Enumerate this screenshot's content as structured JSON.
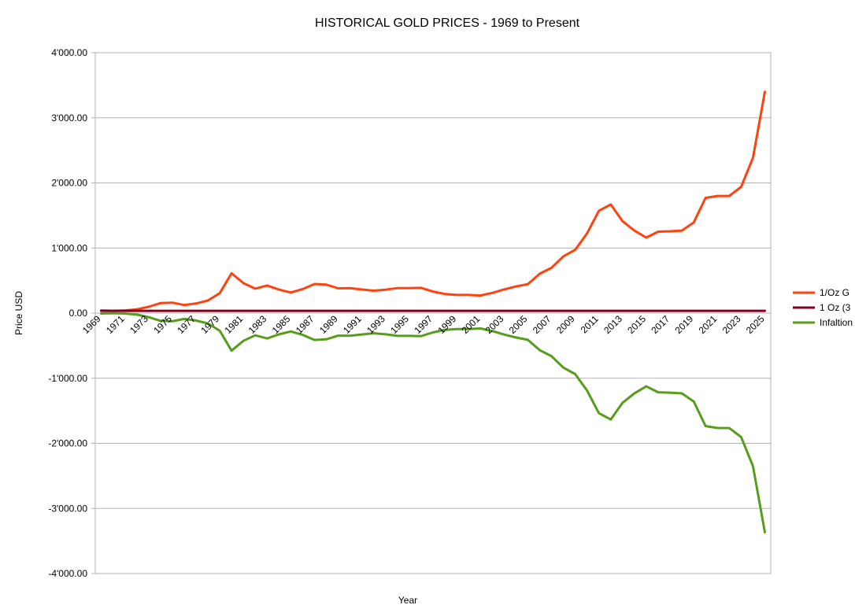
{
  "chart_data": {
    "type": "line",
    "title": "HISTORICAL GOLD PRICES - 1969 to Present",
    "xlabel": "Year",
    "ylabel": "Price USD",
    "ylim": [
      -4000,
      4000
    ],
    "grid": true,
    "legend_position": "right",
    "y_ticks": [
      {
        "value": 4000,
        "label": "4'000.00"
      },
      {
        "value": 3000,
        "label": "3'000.00"
      },
      {
        "value": 2000,
        "label": "2'000.00"
      },
      {
        "value": 1000,
        "label": "1'000.00"
      },
      {
        "value": 0,
        "label": "0.00"
      },
      {
        "value": -1000,
        "label": "-1'000.00"
      },
      {
        "value": -2000,
        "label": "-2'000.00"
      },
      {
        "value": -3000,
        "label": "-3'000.00"
      },
      {
        "value": -4000,
        "label": "-4'000.00"
      }
    ],
    "x_tick_labels": [
      "1969",
      "1971",
      "1973",
      "1975",
      "1977",
      "1979",
      "1981",
      "1983",
      "1985",
      "1987",
      "1989",
      "1991",
      "1993",
      "1995",
      "1997",
      "1999",
      "2001",
      "2003",
      "2005",
      "2007",
      "2009",
      "2011",
      "2013",
      "2015",
      "2017",
      "2019",
      "2021",
      "2023",
      "2025"
    ],
    "x": [
      1969,
      1970,
      1971,
      1972,
      1973,
      1974,
      1975,
      1976,
      1977,
      1978,
      1979,
      1980,
      1981,
      1982,
      1983,
      1984,
      1985,
      1986,
      1987,
      1988,
      1989,
      1990,
      1991,
      1992,
      1993,
      1994,
      1995,
      1996,
      1997,
      1998,
      1999,
      2000,
      2001,
      2002,
      2003,
      2004,
      2005,
      2006,
      2007,
      2008,
      2009,
      2010,
      2011,
      2012,
      2013,
      2014,
      2015,
      2016,
      2017,
      2018,
      2019,
      2020,
      2021,
      2022,
      2023,
      2024,
      2025
    ],
    "series": [
      {
        "name": "1/Oz G",
        "color": "#ff420e",
        "values": [
          41,
          36,
          41,
          58,
          97,
          154,
          161,
          125,
          148,
          193,
          306,
          612,
          460,
          376,
          424,
          361,
          317,
          368,
          447,
          437,
          381,
          383,
          362,
          344,
          360,
          384,
          384,
          388,
          331,
          294,
          279,
          279,
          271,
          310,
          364,
          410,
          445,
          604,
          696,
          872,
          972,
          1225,
          1572,
          1669,
          1411,
          1266,
          1160,
          1251,
          1257,
          1268,
          1393,
          1770,
          1799,
          1800,
          1940,
          2386,
          3400
        ]
      },
      {
        "name": "1 Oz (3",
        "color": "#7e0021",
        "values": [
          35,
          35,
          35,
          35,
          35,
          35,
          35,
          35,
          35,
          35,
          35,
          35,
          35,
          35,
          35,
          35,
          35,
          35,
          35,
          35,
          35,
          35,
          35,
          35,
          35,
          35,
          35,
          35,
          35,
          35,
          35,
          35,
          35,
          35,
          35,
          35,
          35,
          35,
          35,
          35,
          35,
          35,
          35,
          35,
          35,
          35,
          35,
          35,
          35,
          35,
          35,
          35,
          35,
          35,
          35,
          35,
          35
        ]
      },
      {
        "name": "Infaltion",
        "color": "#579d1c",
        "values": [
          -6,
          -1,
          -6,
          -23,
          -62,
          -119,
          -126,
          -90,
          -113,
          -158,
          -271,
          -577,
          -425,
          -341,
          -389,
          -326,
          -282,
          -333,
          -412,
          -402,
          -346,
          -348,
          -327,
          -309,
          -325,
          -349,
          -349,
          -353,
          -296,
          -259,
          -244,
          -244,
          -236,
          -275,
          -329,
          -375,
          -410,
          -569,
          -661,
          -837,
          -937,
          -1190,
          -1537,
          -1634,
          -1376,
          -1231,
          -1125,
          -1216,
          -1222,
          -1233,
          -1358,
          -1735,
          -1764,
          -1765,
          -1905,
          -2351,
          -3365
        ]
      }
    ]
  }
}
